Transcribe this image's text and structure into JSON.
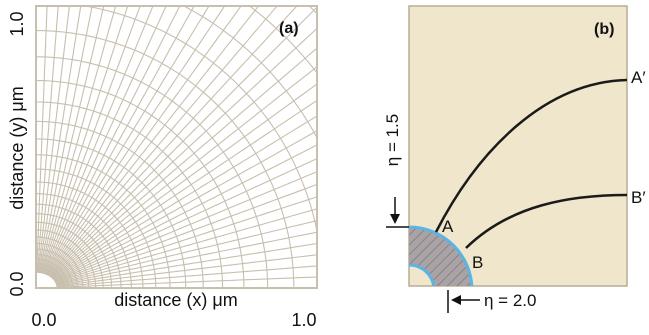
{
  "panel_a": {
    "label": "(a)",
    "xlabel": "distance (x) μm",
    "ylabel": "distance (y) μm",
    "xticks": [
      "0.0",
      "1.0"
    ],
    "yticks": [
      "0.0",
      "1.0"
    ],
    "grid_color": "#c8bfae",
    "frame_color": "#c8bfae"
  },
  "panel_b": {
    "label": "(b)",
    "fill_color": "#f0e6cc",
    "border_color": "#b8ad95",
    "inner_region_color": "#a9a3a5",
    "inner_outline_color": "#5ab4e6",
    "curves": [
      {
        "start": "A",
        "end": "A′"
      },
      {
        "start": "B",
        "end": "B′"
      }
    ],
    "eta_inner": "η = 1.5",
    "eta_outer": "η = 2.0"
  }
}
